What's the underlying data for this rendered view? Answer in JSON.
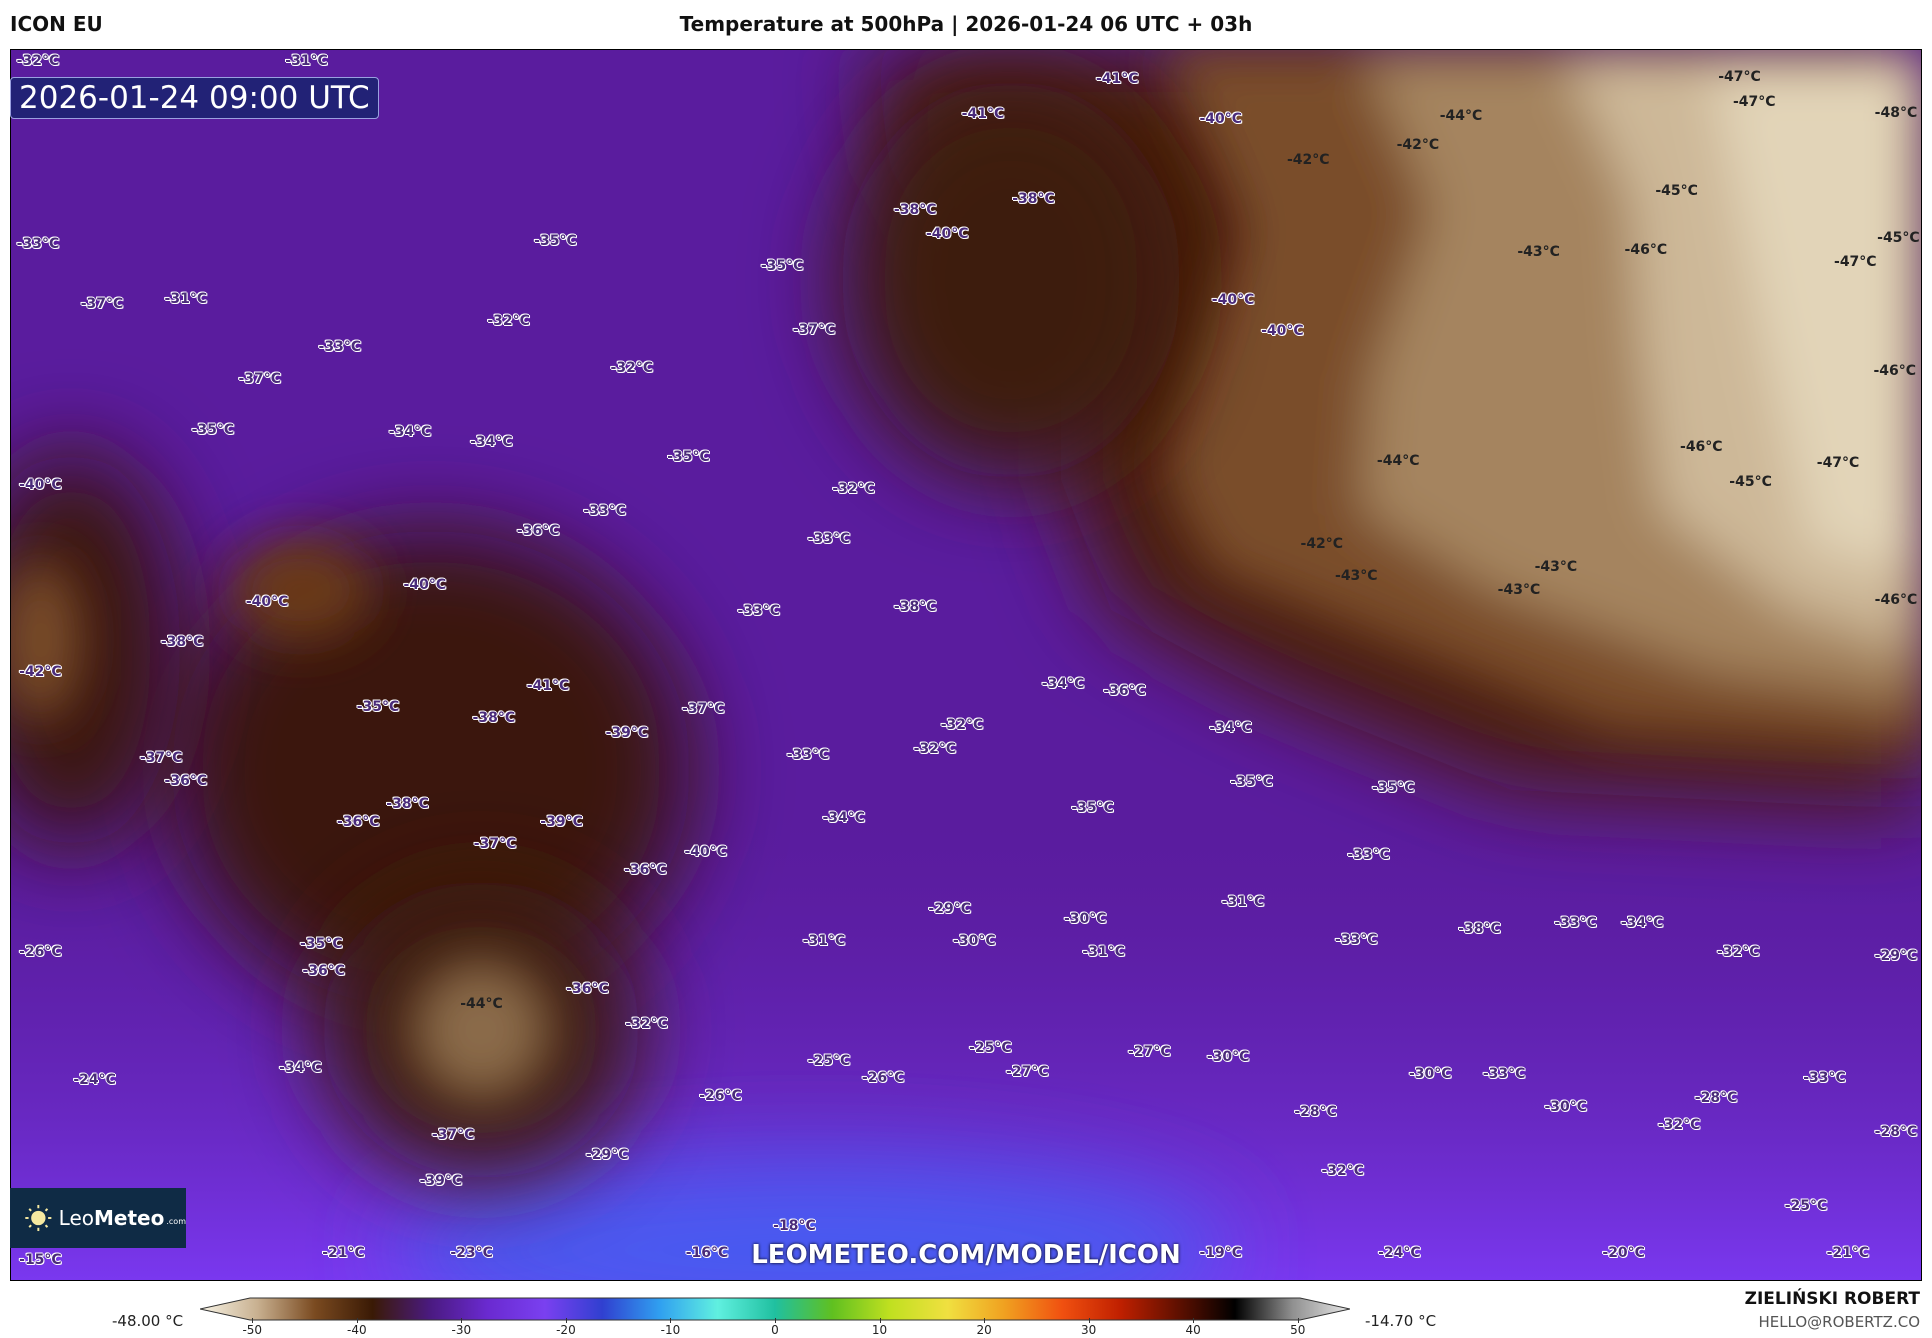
{
  "header": {
    "model": "ICON EU",
    "title": "Temperature at 500hPa | 2026-01-24 06 UTC + 03h"
  },
  "map": {
    "valid_time": "2026-01-24 09:00 UTC",
    "watermark_url": "LEOMETEO.COM/MODEL/ICON",
    "logo": {
      "part1": "Leo",
      "part2": "Meteo",
      "part3": ".com",
      "icon": "sun-icon"
    },
    "temperature_labels": [
      "-32°C",
      "-31°C",
      "-35°C",
      "-33°C",
      "-37°C",
      "-31°C",
      "-32°C",
      "-33°C",
      "-37°C",
      "-32°C",
      "-35°C",
      "-34°C",
      "-34°C",
      "-40°C",
      "-35°C",
      "-33°C",
      "-36°C",
      "-32°C",
      "-33°C",
      "-40°C",
      "-40°C",
      "-38°C",
      "-33°C",
      "-38°C",
      "-42°C",
      "-41°C",
      "-35°C",
      "-38°C",
      "-37°C",
      "-39°C",
      "-32°C",
      "-33°C",
      "-32°C",
      "-37°C",
      "-36°C",
      "-36°C",
      "-38°C",
      "-39°C",
      "-34°C",
      "-37°C",
      "-40°C",
      "-36°C",
      "-35°C",
      "-26°C",
      "-35°C",
      "-36°C",
      "-31°C",
      "-29°C",
      "-30°C",
      "-30°C",
      "-31°C",
      "-44°C",
      "-36°C",
      "-32°C",
      "-34°C",
      "-24°C",
      "-25°C",
      "-25°C",
      "-26°C",
      "-27°C",
      "-27°C",
      "-30°C",
      "-26°C",
      "-37°C",
      "-29°C",
      "-39°C",
      "-18°C",
      "-16°C",
      "-23°C",
      "-21°C",
      "-15°C",
      "-19°C",
      "-24°C",
      "-20°C",
      "-21°C",
      "-25°C",
      "-28°C",
      "-28°C",
      "-32°C",
      "-30°C",
      "-30°C",
      "-33°C",
      "-33°C",
      "-32°C",
      "-28°C",
      "-32°C",
      "-29°C",
      "-33°C",
      "-38°C",
      "-33°C",
      "-34°C",
      "-31°C",
      "-33°C",
      "-35°C",
      "-35°C",
      "-34°C",
      "-34°C",
      "-36°C",
      "-42°C",
      "-43°C",
      "-43°C",
      "-43°C",
      "-44°C",
      "-46°C",
      "-45°C",
      "-47°C",
      "-46°C",
      "-46°C",
      "-47°C",
      "-45°C",
      "-43°C",
      "-46°C",
      "-45°C",
      "-44°C",
      "-42°C",
      "-42°C",
      "-40°C",
      "-41°C",
      "-41°C",
      "-38°C",
      "-40°C",
      "-38°C",
      "-40°C",
      "-40°C",
      "-37°C",
      "-35°C",
      "-47°C",
      "-47°C",
      "-48°C",
      "-32°C",
      "-31°C"
    ]
  },
  "colorbar": {
    "min_label": "-48.00 °C",
    "max_label": "-14.70 °C",
    "ticks": [
      "-50",
      "-40",
      "-30",
      "-20",
      "-10",
      "0",
      "10",
      "20",
      "30",
      "40",
      "50"
    ],
    "range": [
      -55,
      55
    ],
    "colors": [
      "#f8f4e6",
      "#c8b090",
      "#7a4a20",
      "#3a1a05",
      "#4a1a80",
      "#6a2ad0",
      "#7a40f0",
      "#3040d0",
      "#30a0f0",
      "#60f0e0",
      "#20c0a0",
      "#60c020",
      "#c0e020",
      "#f0e040",
      "#f0a020",
      "#f05010",
      "#c02000",
      "#601000",
      "#000000",
      "#909090",
      "#e8e8e8"
    ]
  },
  "credits": {
    "author": "ZIELIŃSKI ROBERT",
    "email": "HELLO@ROBERTZ.CO"
  }
}
